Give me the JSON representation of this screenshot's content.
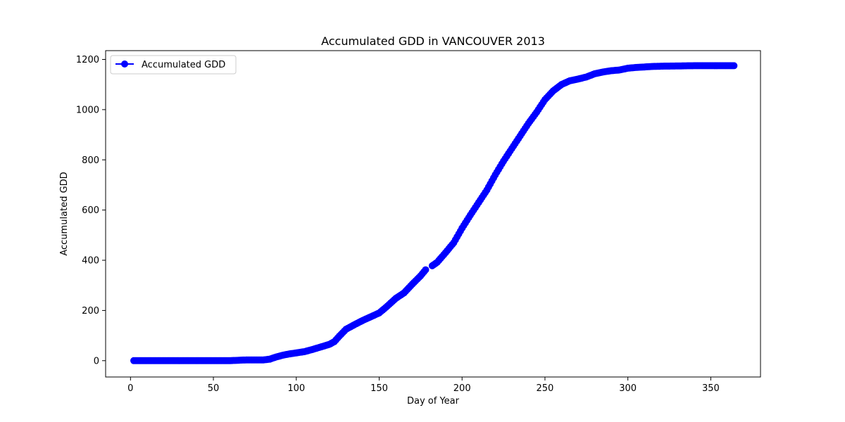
{
  "chart_data": {
    "type": "line",
    "title": "Accumulated GDD in VANCOUVER 2013",
    "xlabel": "Day of Year",
    "ylabel": "Accumulated GDD",
    "xlim": [
      -15,
      380
    ],
    "ylim": [
      -65,
      1235
    ],
    "xticks": [
      0,
      50,
      100,
      150,
      200,
      250,
      300,
      350
    ],
    "yticks": [
      0,
      200,
      400,
      600,
      800,
      1000,
      1200
    ],
    "grid": false,
    "legend_position": "top-left",
    "series": [
      {
        "name": "Accumulated GDD",
        "color": "#0000ff",
        "marker": "circle",
        "breaks_after_x": [
          178
        ],
        "points": [
          [
            2,
            0
          ],
          [
            20,
            0
          ],
          [
            40,
            0
          ],
          [
            60,
            0
          ],
          [
            66,
            2
          ],
          [
            70,
            3
          ],
          [
            80,
            3
          ],
          [
            84,
            6
          ],
          [
            88,
            15
          ],
          [
            92,
            22
          ],
          [
            96,
            27
          ],
          [
            100,
            31
          ],
          [
            105,
            36
          ],
          [
            110,
            45
          ],
          [
            115,
            55
          ],
          [
            120,
            65
          ],
          [
            123,
            76
          ],
          [
            126,
            98
          ],
          [
            130,
            125
          ],
          [
            135,
            143
          ],
          [
            140,
            160
          ],
          [
            145,
            175
          ],
          [
            150,
            190
          ],
          [
            154,
            212
          ],
          [
            160,
            248
          ],
          [
            165,
            270
          ],
          [
            170,
            305
          ],
          [
            175,
            338
          ],
          [
            178,
            362
          ],
          [
            182,
            378
          ],
          [
            185,
            392
          ],
          [
            190,
            430
          ],
          [
            195,
            470
          ],
          [
            200,
            528
          ],
          [
            205,
            580
          ],
          [
            210,
            630
          ],
          [
            215,
            680
          ],
          [
            220,
            740
          ],
          [
            225,
            795
          ],
          [
            230,
            845
          ],
          [
            235,
            895
          ],
          [
            240,
            945
          ],
          [
            245,
            990
          ],
          [
            250,
            1040
          ],
          [
            255,
            1075
          ],
          [
            260,
            1100
          ],
          [
            265,
            1115
          ],
          [
            270,
            1122
          ],
          [
            275,
            1130
          ],
          [
            280,
            1143
          ],
          [
            285,
            1150
          ],
          [
            290,
            1155
          ],
          [
            295,
            1158
          ],
          [
            300,
            1165
          ],
          [
            305,
            1168
          ],
          [
            310,
            1170
          ],
          [
            315,
            1172
          ],
          [
            320,
            1173
          ],
          [
            330,
            1174
          ],
          [
            340,
            1175
          ],
          [
            364,
            1175
          ]
        ]
      }
    ]
  }
}
